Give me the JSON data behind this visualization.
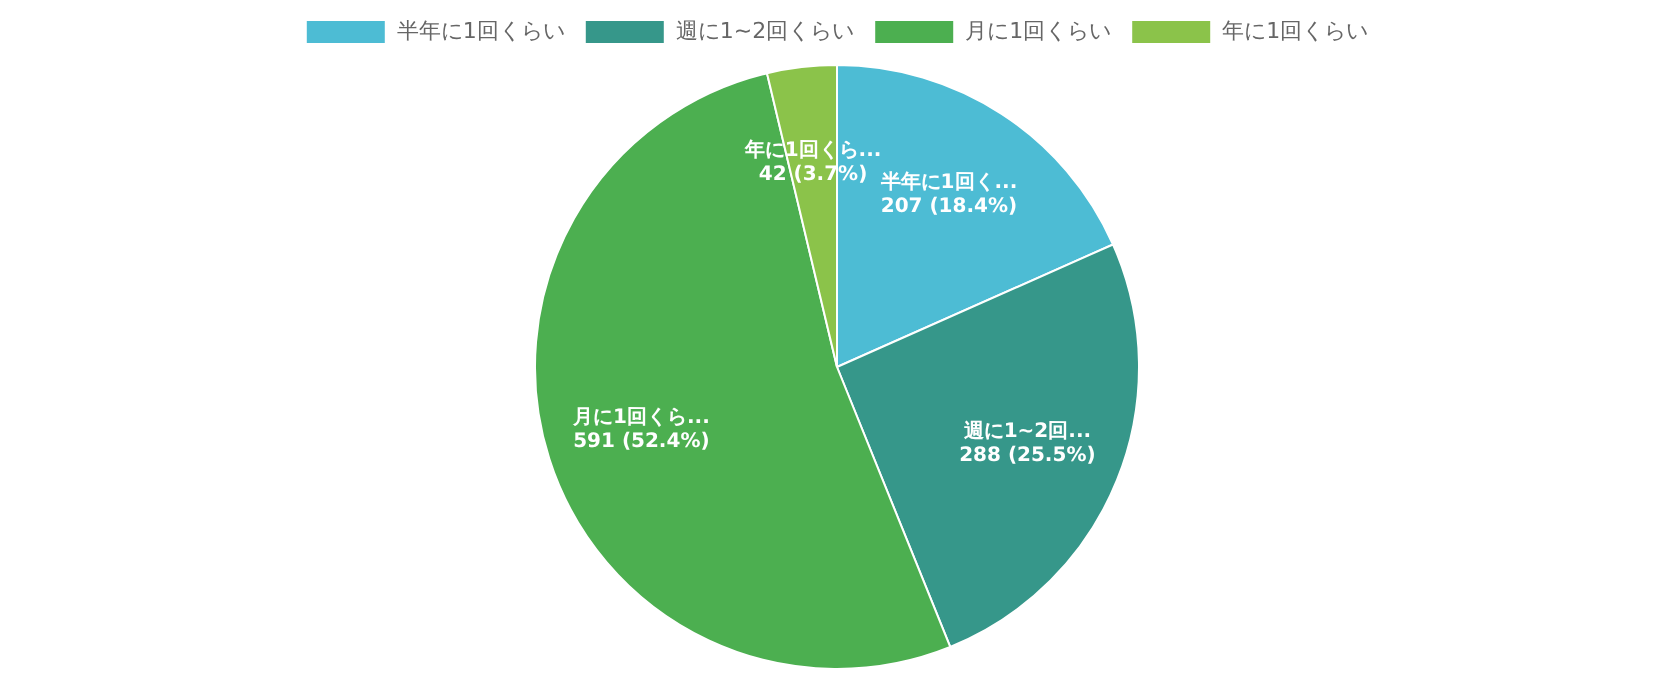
{
  "chart_data": {
    "type": "pie",
    "categories": [
      "半年に1回くらい",
      "週に1~2回くらい",
      "月に1回くらい",
      "年に1回くらい"
    ],
    "values": [
      207,
      288,
      591,
      42
    ],
    "colors": [
      "#4dbcd4",
      "#36978a",
      "#4caf50",
      "#8bc34a"
    ],
    "value_labels": [
      "半年に1回く...\n207 (18.4%)",
      "週に1~2回...\n288 (25.5%)",
      "月に1回くら...\n591 (52.4%)",
      "年に1回くら...\n42 (3.7%)"
    ],
    "legend": "top"
  }
}
